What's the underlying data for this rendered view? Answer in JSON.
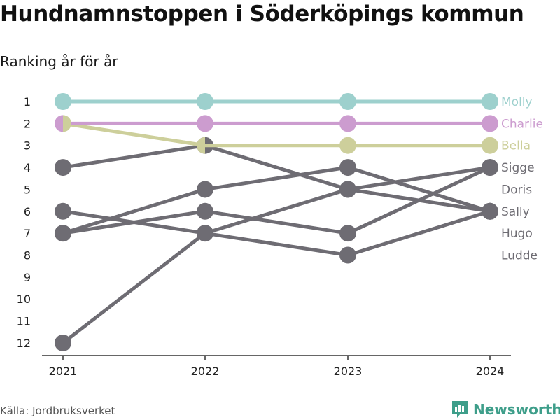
{
  "header": {
    "title": "Hundnamnstoppen i Söderköpings kommun",
    "subtitle": "Ranking år för år"
  },
  "footer": {
    "source": "Källa: Jordbruksverket",
    "brand": "Newsworthy"
  },
  "colors": {
    "grey": "#6e6c73",
    "molly": "#9dd0cd",
    "charlie": "#cc9ccf",
    "bella": "#cdcf9b",
    "brand": "#3e9e8a"
  },
  "chart_data": {
    "type": "line",
    "subtype": "bump",
    "x": [
      "2021",
      "2022",
      "2023",
      "2024"
    ],
    "yticks": [
      "1",
      "2",
      "3",
      "4",
      "5",
      "6",
      "7",
      "8",
      "9",
      "10",
      "11",
      "12"
    ],
    "ylim": [
      1,
      12
    ],
    "y_reversed": true,
    "grid": false,
    "series": [
      {
        "name": "Molly",
        "ranks": [
          1,
          1,
          1,
          1
        ],
        "color": "#9dd0cd",
        "highlight": true
      },
      {
        "name": "Charlie",
        "ranks": [
          2,
          2,
          2,
          2
        ],
        "color": "#cc9ccf",
        "highlight": true
      },
      {
        "name": "Bella",
        "ranks": [
          2,
          3,
          3,
          3
        ],
        "color": "#cdcf9b",
        "highlight": true
      },
      {
        "name": "Sigge",
        "ranks": [
          12,
          7,
          5,
          4
        ],
        "color": "#6e6c73",
        "highlight": false
      },
      {
        "name": "Doris",
        "ranks": [
          7,
          5,
          4,
          6
        ],
        "color": "#6e6c73",
        "highlight": false
      },
      {
        "name": "Sally",
        "ranks": [
          4,
          3,
          5,
          6
        ],
        "color": "#6e6c73",
        "highlight": false
      },
      {
        "name": "Hugo",
        "ranks": [
          7,
          6,
          7,
          4
        ],
        "color": "#6e6c73",
        "highlight": false
      },
      {
        "name": "Ludde",
        "ranks": [
          6,
          7,
          8,
          6
        ],
        "color": "#6e6c73",
        "highlight": false
      }
    ],
    "end_labels": [
      "Molly",
      "Charlie",
      "Bella",
      "Sigge",
      "Doris",
      "Sally",
      "Hugo",
      "Ludde"
    ]
  }
}
